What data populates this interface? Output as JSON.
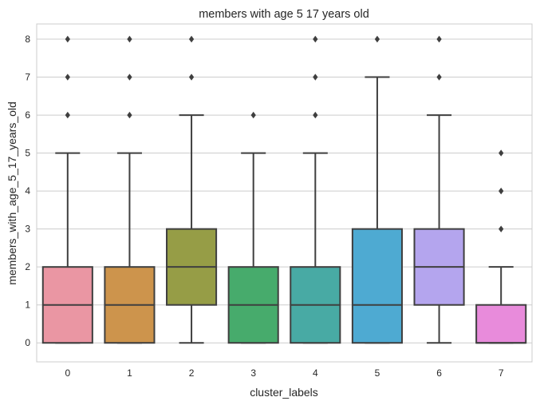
{
  "chart_data": {
    "type": "box",
    "title": "members with age 5 17 years old",
    "xlabel": "cluster_labels",
    "ylabel": "members_with_age_5_17_years_old",
    "ylim": [
      -0.5,
      8.4
    ],
    "yticks": [
      0,
      1,
      2,
      3,
      4,
      5,
      6,
      7,
      8
    ],
    "grid": true,
    "categories": [
      "0",
      "1",
      "2",
      "3",
      "4",
      "5",
      "6",
      "7"
    ],
    "boxes": [
      {
        "category": "0",
        "whisker_low": 0,
        "q1": 0,
        "median": 1,
        "q3": 2,
        "whisker_high": 5,
        "outliers": [
          6,
          7,
          8
        ],
        "color": "#ea96a3"
      },
      {
        "category": "1",
        "whisker_low": 0,
        "q1": 0,
        "median": 1,
        "q3": 2,
        "whisker_high": 5,
        "outliers": [
          6,
          7,
          8
        ],
        "color": "#cd944c"
      },
      {
        "category": "2",
        "whisker_low": 0,
        "q1": 1,
        "median": 2,
        "q3": 3,
        "whisker_high": 6,
        "outliers": [
          7,
          8
        ],
        "color": "#969d46"
      },
      {
        "category": "3",
        "whisker_low": 0,
        "q1": 0,
        "median": 1,
        "q3": 2,
        "whisker_high": 5,
        "outliers": [
          6
        ],
        "color": "#47ab6c"
      },
      {
        "category": "4",
        "whisker_low": 0,
        "q1": 0,
        "median": 1,
        "q3": 2,
        "whisker_high": 5,
        "outliers": [
          6,
          7,
          8
        ],
        "color": "#48aaa4"
      },
      {
        "category": "5",
        "whisker_low": 0,
        "q1": 0,
        "median": 1,
        "q3": 3,
        "whisker_high": 7,
        "outliers": [
          8
        ],
        "color": "#4eaad2"
      },
      {
        "category": "6",
        "whisker_low": 0,
        "q1": 1,
        "median": 2,
        "q3": 3,
        "whisker_high": 6,
        "outliers": [
          7,
          8
        ],
        "color": "#b4a5ee"
      },
      {
        "category": "7",
        "whisker_low": 0,
        "q1": 0,
        "median": 0,
        "q3": 1,
        "whisker_high": 2,
        "outliers": [
          3,
          4,
          5
        ],
        "color": "#e88bdb"
      }
    ],
    "line_color": "#3f3f3f",
    "grid_color": "#cccccc"
  }
}
